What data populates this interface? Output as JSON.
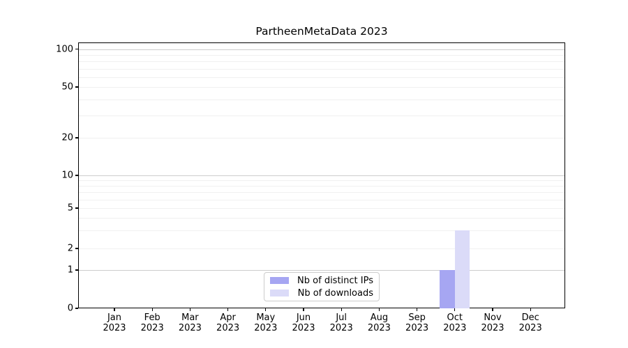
{
  "chart_data": {
    "type": "bar",
    "title": "PartheenMetaData 2023",
    "categories": [
      "Jan",
      "Feb",
      "Mar",
      "Apr",
      "May",
      "Jun",
      "Jul",
      "Aug",
      "Sep",
      "Oct",
      "Nov",
      "Dec"
    ],
    "category_year": "2023",
    "series": [
      {
        "name": "Nb of distinct IPs",
        "color": "#a6a6f2",
        "values": [
          0,
          0,
          0,
          0,
          0,
          0,
          0,
          0,
          0,
          1,
          0,
          0
        ]
      },
      {
        "name": "Nb of downloads",
        "color": "#dbdbf8",
        "values": [
          0,
          0,
          0,
          0,
          0,
          0,
          0,
          0,
          0,
          3,
          0,
          0
        ]
      }
    ],
    "yticks": [
      0,
      1,
      2,
      5,
      10,
      20,
      50,
      100
    ],
    "ylim": [
      0,
      110
    ],
    "yscale": "symlog-like",
    "grid": true,
    "minor_gridlines": [
      2,
      3,
      4,
      5,
      6,
      7,
      8,
      9,
      20,
      30,
      40,
      50,
      60,
      70,
      80,
      90
    ],
    "major_gridlines": [
      1,
      10,
      100
    ],
    "legend_position": "lower-center",
    "xlabel": "",
    "ylabel": ""
  }
}
